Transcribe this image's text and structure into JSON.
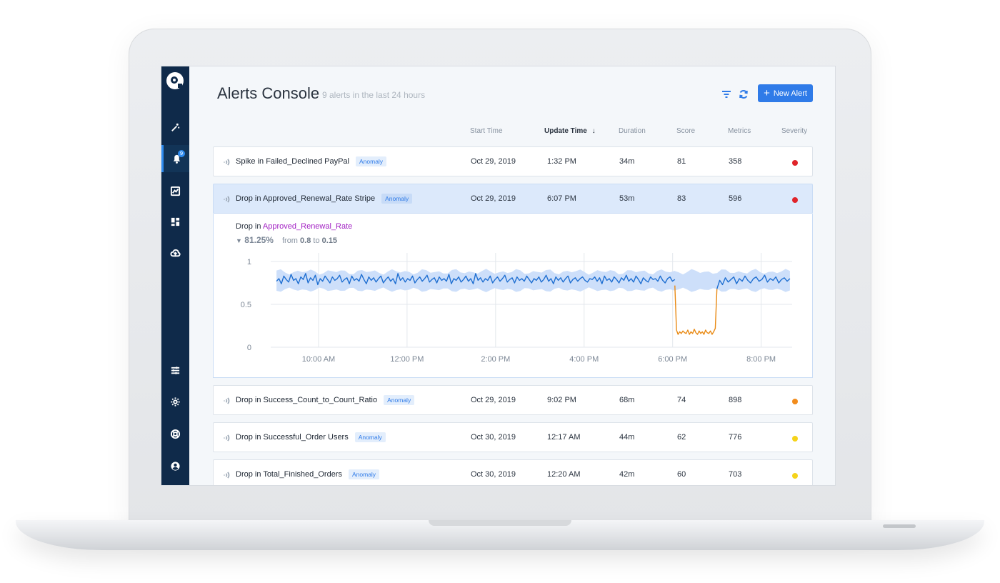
{
  "header": {
    "title": "Alerts Console",
    "subtitle": "9 alerts in the last 24 hours",
    "new_alert_label": "New Alert"
  },
  "sidebar": {
    "notification_count": "9",
    "items": [
      "explore",
      "alerts",
      "anomalies",
      "dashboards",
      "upload",
      "adjust",
      "settings",
      "support",
      "account"
    ]
  },
  "columns": [
    "Start Time",
    "Update Time",
    "Duration",
    "Score",
    "Metrics",
    "Severity"
  ],
  "sorted_column_arrow": "↓",
  "alerts": [
    {
      "title": "Spike in Failed_Declined PayPal",
      "tag": "Anomaly",
      "start": "Oct 29, 2019",
      "update": "1:32 PM",
      "duration": "34m",
      "score": "81",
      "metrics": "358",
      "severity_color": "#e0242a"
    },
    {
      "title": "Drop in Approved_Renewal_Rate Stripe",
      "tag": "Anomaly",
      "start": "Oct 29, 2019",
      "update": "6:07 PM",
      "duration": "53m",
      "score": "83",
      "metrics": "596",
      "severity_color": "#e0242a"
    },
    {
      "title": "Drop in Success_Count_to_Count_Ratio",
      "tag": "Anomaly",
      "start": "Oct 29, 2019",
      "update": "9:02 PM",
      "duration": "68m",
      "score": "74",
      "metrics": "898",
      "severity_color": "#f28c1c"
    },
    {
      "title": "Drop in Successful_Order Users",
      "tag": "Anomaly",
      "start": "Oct 30, 2019",
      "update": "12:17 AM",
      "duration": "44m",
      "score": "62",
      "metrics": "776",
      "severity_color": "#f5d31a"
    },
    {
      "title": "Drop in Total_Finished_Orders",
      "tag": "Anomaly",
      "start": "Oct 30, 2019",
      "update": "12:20 AM",
      "duration": "42m",
      "score": "60",
      "metrics": "703",
      "severity_color": "#f5d31a"
    }
  ],
  "detail": {
    "prefix": "Drop in",
    "metric": "Approved_Renewal_Rate",
    "change_pct": "81.25%",
    "from_label": "from",
    "from_value": "0.8",
    "to_label": "to",
    "to_value": "0.15"
  },
  "chart_data": {
    "type": "line",
    "x_ticks": [
      "10:00 AM",
      "12:00 PM",
      "2:00 PM",
      "4:00 PM",
      "6:00 PM",
      "8:00 PM"
    ],
    "y_ticks": [
      "1",
      "0.5",
      "0"
    ],
    "ylim": [
      0,
      1
    ],
    "xlim_hours": [
      9,
      20.7
    ],
    "normal_band": [
      0.67,
      0.88
    ],
    "series": [
      {
        "values": [
          0.77,
          0.8,
          0.74,
          0.83,
          0.79,
          0.76,
          0.85,
          0.78,
          0.8,
          0.74,
          0.82,
          0.79,
          0.86,
          0.75,
          0.81,
          0.78,
          0.84,
          0.73,
          0.8,
          0.77,
          0.83,
          0.79,
          0.75,
          0.82,
          0.78,
          0.8,
          0.84,
          0.76,
          0.79,
          0.81,
          0.74,
          0.83,
          0.78,
          0.8,
          0.77,
          0.85,
          0.79,
          0.74,
          0.82,
          0.78,
          0.81,
          0.76,
          0.8,
          0.83,
          0.75,
          0.79,
          0.82,
          0.77,
          0.8,
          0.74,
          0.86,
          0.78,
          0.81,
          0.76,
          0.8,
          0.78,
          0.83,
          0.75,
          0.79,
          0.82,
          0.77,
          0.8,
          0.84,
          0.76,
          0.79,
          0.81,
          0.75,
          0.82,
          0.78,
          0.8,
          0.77,
          0.85,
          0.74,
          0.8,
          0.78,
          0.82,
          0.76,
          0.79,
          0.83,
          0.77,
          0.8,
          0.74,
          0.86,
          0.78,
          0.81,
          0.76,
          0.8,
          0.78,
          0.83,
          0.75,
          0.79,
          0.82,
          0.77,
          0.8,
          0.84,
          0.76,
          0.79,
          0.81,
          0.75,
          0.82,
          0.78,
          0.8,
          0.77,
          0.83,
          0.79,
          0.75,
          0.8,
          0.78,
          0.82,
          0.76,
          0.79,
          0.84,
          0.77,
          0.8,
          0.74,
          0.82,
          0.78,
          0.81,
          0.76,
          0.8,
          0.83,
          0.75,
          0.79,
          0.81,
          0.77,
          0.8,
          0.82,
          0.78,
          0.76,
          0.8,
          0.79,
          0.82,
          0.77,
          0.81,
          0.74,
          0.83,
          0.78,
          0.8,
          0.76,
          0.82,
          0.79,
          0.75,
          0.81,
          0.78,
          0.84,
          0.77,
          0.8,
          0.76,
          0.83,
          0.79,
          0.74,
          0.81,
          0.78,
          0.76,
          0.82,
          0.79,
          0.8,
          0.77,
          0.83,
          0.78,
          0.75,
          0.8,
          0.82,
          0.77,
          0.79
        ]
      },
      {
        "values": [
          0.72,
          0.2,
          0.15,
          0.18,
          0.16,
          0.19,
          0.17,
          0.16,
          0.2,
          0.15,
          0.18,
          0.16,
          0.21,
          0.17,
          0.15,
          0.19,
          0.16,
          0.18,
          0.15,
          0.2,
          0.17,
          0.16,
          0.19,
          0.15,
          0.18,
          0.22,
          0.68
        ]
      },
      {
        "values": [
          0.68,
          0.78,
          0.73,
          0.81,
          0.76,
          0.79,
          0.82,
          0.74,
          0.8,
          0.77,
          0.83,
          0.78,
          0.75,
          0.8,
          0.82,
          0.77,
          0.79,
          0.84,
          0.76,
          0.8,
          0.78,
          0.82,
          0.75,
          0.79,
          0.81,
          0.77,
          0.8
        ]
      }
    ],
    "series_colors": [
      "#1f6fd1",
      "#e98a14",
      "#1f6fd1"
    ],
    "band_color": "#cddffa"
  }
}
